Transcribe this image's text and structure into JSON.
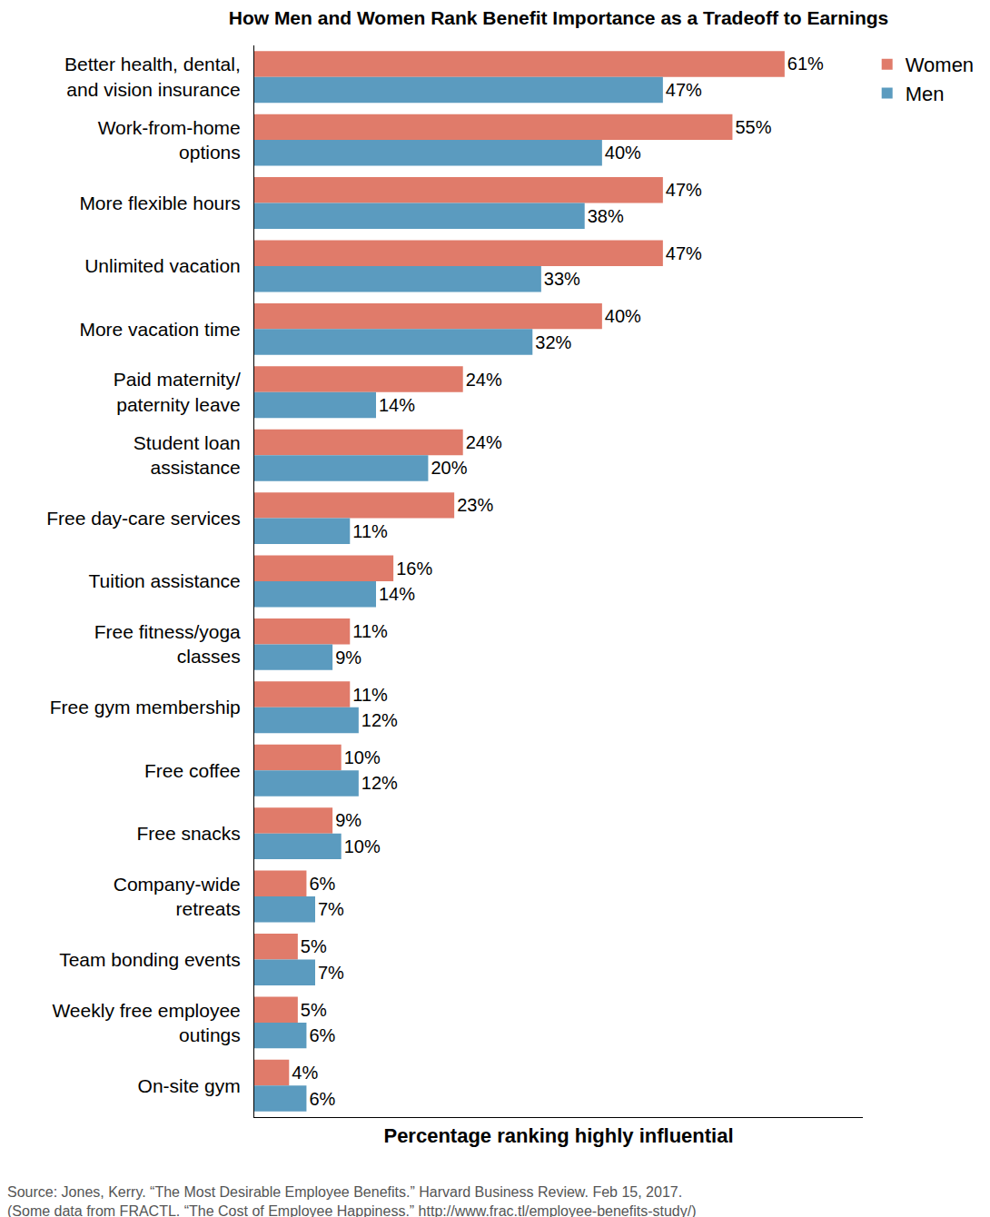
{
  "chart_data": {
    "type": "bar",
    "title": "How Men and Women Rank Benefit Importance as a Tradeoff to Earnings",
    "orientation": "horizontal",
    "categories": [
      "Better health, dental,\nand vision insurance",
      "Work-from-home\noptions",
      "More flexible hours",
      "Unlimited vacation",
      "More vacation time",
      "Paid maternity/\npaternity leave",
      "Student loan\nassistance",
      "Free day-care services",
      "Tuition assistance",
      "Free fitness/yoga\nclasses",
      "Free gym membership",
      "Free coffee",
      "Free snacks",
      "Company-wide\nretreats",
      "Team bonding events",
      "Weekly free employee\noutings",
      "On-site gym"
    ],
    "series": [
      {
        "name": "Women",
        "color": "#e07b6a",
        "values": [
          61,
          55,
          47,
          47,
          40,
          24,
          24,
          23,
          16,
          11,
          11,
          10,
          9,
          6,
          5,
          5,
          4
        ],
        "value_labels": [
          "61%",
          "55%",
          "47%",
          "47%",
          "40%",
          "24%",
          "24%",
          "23%",
          "16%",
          "11%",
          "11%",
          "10%",
          "9%",
          "6%",
          "5%",
          "5%",
          "4%"
        ]
      },
      {
        "name": "Men",
        "color": "#5b9bbf",
        "values": [
          47,
          40,
          38,
          33,
          32,
          14,
          20,
          11,
          14,
          9,
          12,
          12,
          10,
          7,
          7,
          6,
          6
        ],
        "value_labels": [
          "47%",
          "40%",
          "38%",
          "33%",
          "32%",
          "14%",
          "20%",
          "11%",
          "14%",
          "9%",
          "12%",
          "12%",
          "10%",
          "7%",
          "7%",
          "6%",
          "6%"
        ]
      }
    ],
    "xlabel": "Percentage ranking highly influential",
    "xlim": [
      0,
      70
    ],
    "tick_labels": "y",
    "grid": false,
    "legend": "top right",
    "data_labels": true,
    "annotations": [
      "Source: Jones, Kerry. “The Most Desirable Employee Benefits.” Harvard Business Review. Feb 15, 2017.",
      "(Some data from FRACTL. “The Cost of Employee Happiness.” http://www.frac.tl/employee-benefits-study/)"
    ]
  }
}
